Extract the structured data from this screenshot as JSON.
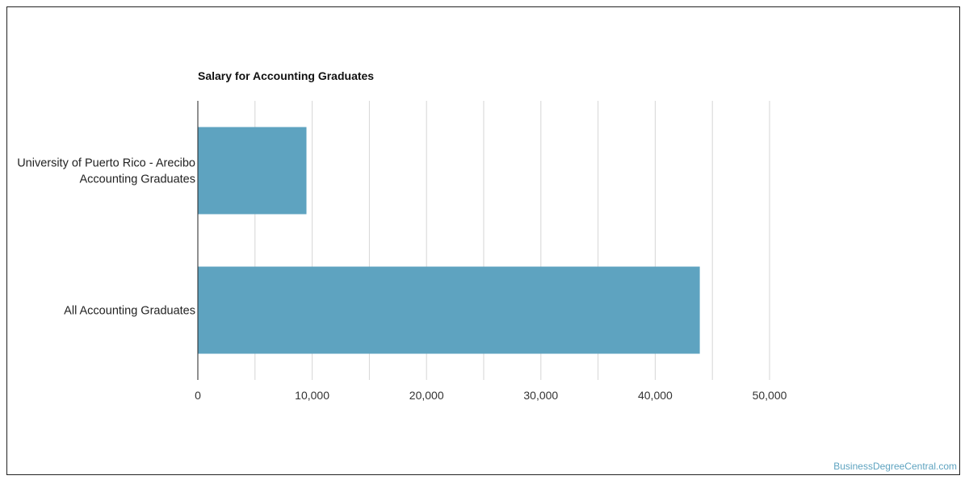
{
  "chart_data": {
    "type": "bar",
    "orientation": "horizontal",
    "title": "Salary for Accounting Graduates",
    "categories": [
      [
        "University of Puerto Rico - Arecibo",
        "Accounting Graduates"
      ],
      [
        "All Accounting Graduates"
      ]
    ],
    "values": [
      9500,
      43900
    ],
    "xlim": [
      0,
      50000
    ],
    "xticks": [
      0,
      10000,
      20000,
      30000,
      40000,
      50000
    ],
    "xtick_labels": [
      "0",
      "10,000",
      "20,000",
      "30,000",
      "40,000",
      "50,000"
    ],
    "minor_gridlines": [
      5000,
      15000,
      25000,
      35000,
      45000
    ],
    "grid": true,
    "bar_color": "#5ea3c0",
    "grid_color": "#d6d6d6"
  },
  "footer": {
    "credit": "BusinessDegreeCentral.com"
  }
}
